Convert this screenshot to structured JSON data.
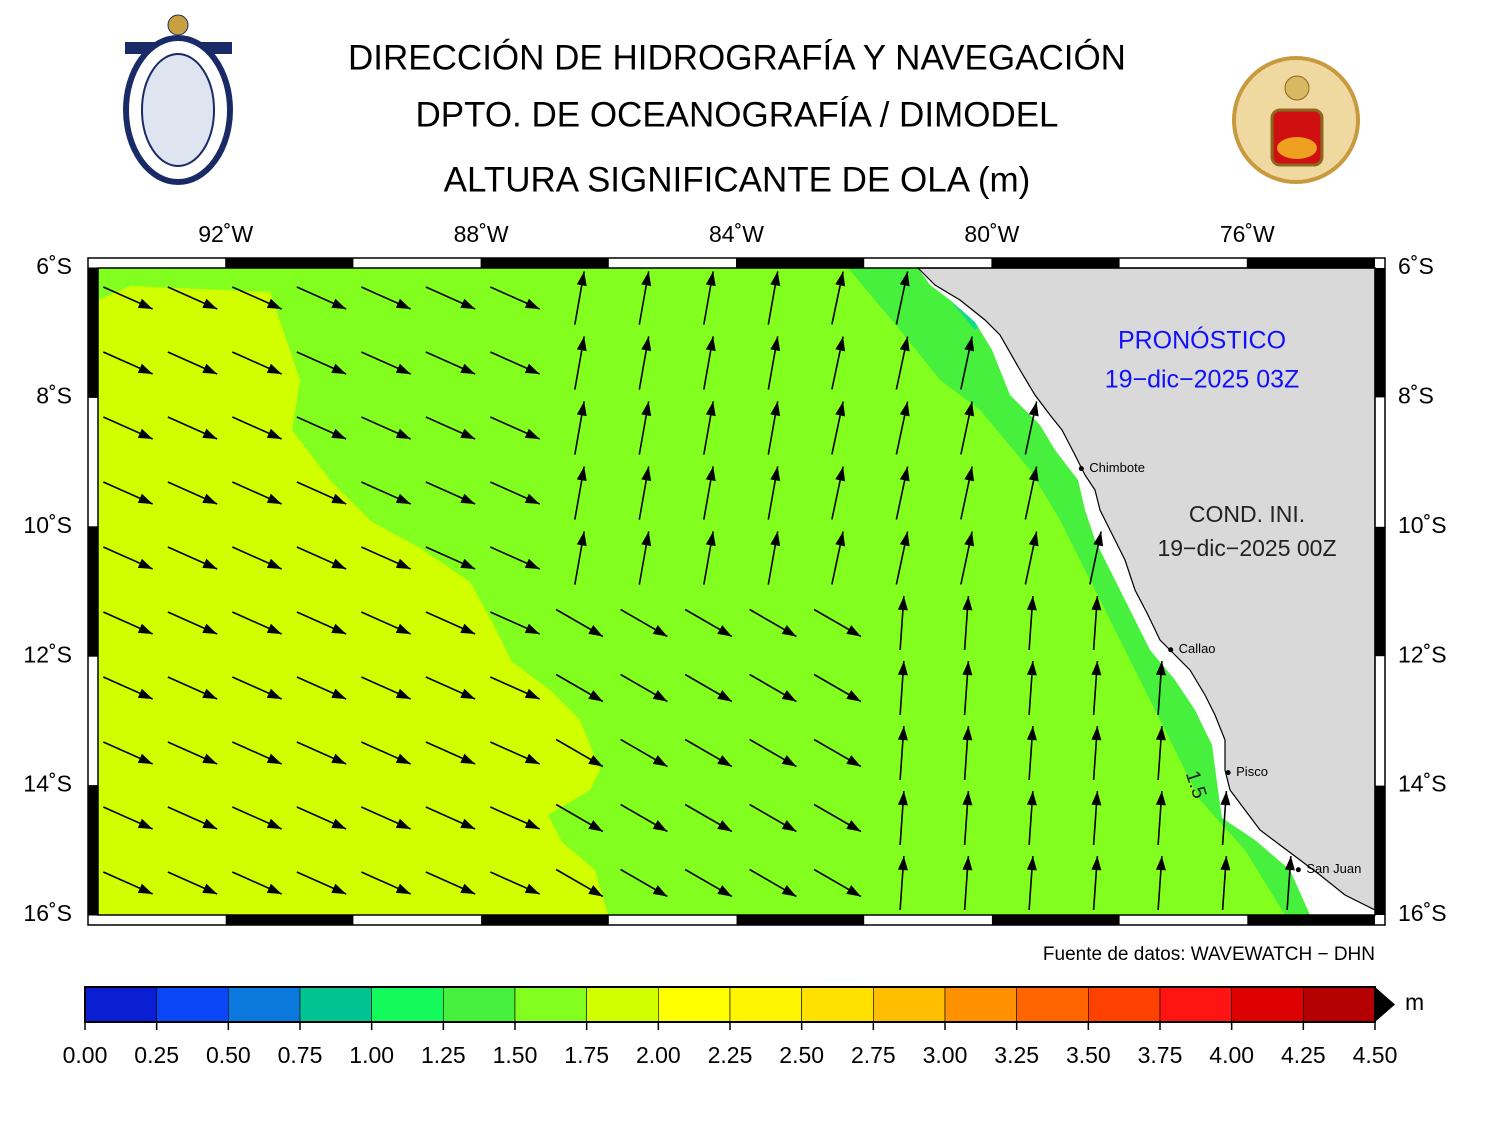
{
  "header": {
    "title": "DIRECCIÓN DE HIDROGRAFÍA Y NAVEGACIÓN",
    "subtitle": "DPTO. DE OCEANOGRAFÍA / DIMODEL",
    "variable": "ALTURA SIGNIFICANTE DE OLA (m)"
  },
  "map": {
    "lon_range": [
      -94,
      -74
    ],
    "lat_range": [
      -16,
      -6
    ],
    "lon_ticks": [
      {
        "value": -92,
        "label": "92˚W"
      },
      {
        "value": -88,
        "label": "88˚W"
      },
      {
        "value": -84,
        "label": "84˚W"
      },
      {
        "value": -80,
        "label": "80˚W"
      },
      {
        "value": -76,
        "label": "76˚W"
      }
    ],
    "lat_ticks": [
      {
        "value": -6,
        "label": "6˚S"
      },
      {
        "value": -8,
        "label": "8˚S"
      },
      {
        "value": -10,
        "label": "10˚S"
      },
      {
        "value": -12,
        "label": "12˚S"
      },
      {
        "value": -14,
        "label": "14˚S"
      },
      {
        "value": -16,
        "label": "16˚S"
      }
    ],
    "cities": [
      {
        "name": "Chimbote",
        "lon": -78.6,
        "lat": -9.1
      },
      {
        "name": "Callao",
        "lon": -77.2,
        "lat": -11.9
      },
      {
        "name": "Pisco",
        "lon": -76.3,
        "lat": -13.8
      },
      {
        "name": "San Juan",
        "lon": -75.2,
        "lat": -15.3
      }
    ],
    "contour_label": "1.5",
    "forecast_label": "PRONÓSTICO",
    "forecast_time": "19−dic−2025 03Z",
    "init_label": "COND. INI.",
    "init_time": "19−dic−2025 00Z",
    "source": "Fuente de datos: WAVEWATCH − DHN"
  },
  "colorbar": {
    "unit": "m",
    "range": [
      0,
      4.5
    ],
    "colors": [
      "#0a1ed2",
      "#0a46f5",
      "#0a78dc",
      "#00c391",
      "#14fa5a",
      "#46f03c",
      "#82ff1e",
      "#d2ff00",
      "#ffff00",
      "#fff500",
      "#ffe100",
      "#ffbe00",
      "#ff9100",
      "#ff6400",
      "#ff4100",
      "#ff1414",
      "#dc0000",
      "#b40000"
    ],
    "ticks": [
      {
        "value": 0,
        "label": "0.00"
      },
      {
        "value": 0.25,
        "label": "0.25"
      },
      {
        "value": 0.5,
        "label": "0.50"
      },
      {
        "value": 0.75,
        "label": "0.75"
      },
      {
        "value": 1,
        "label": "1.00"
      },
      {
        "value": 1.25,
        "label": "1.25"
      },
      {
        "value": 1.5,
        "label": "1.50"
      },
      {
        "value": 1.75,
        "label": "1.75"
      },
      {
        "value": 2,
        "label": "2.00"
      },
      {
        "value": 2.25,
        "label": "2.25"
      },
      {
        "value": 2.5,
        "label": "2.50"
      },
      {
        "value": 2.75,
        "label": "2.75"
      },
      {
        "value": 3,
        "label": "3.00"
      },
      {
        "value": 3.25,
        "label": "3.25"
      },
      {
        "value": 3.5,
        "label": "3.50"
      },
      {
        "value": 3.75,
        "label": "3.75"
      },
      {
        "value": 4,
        "label": "4.00"
      },
      {
        "value": 4.25,
        "label": "4.25"
      },
      {
        "value": 4.5,
        "label": "4.50"
      }
    ]
  }
}
